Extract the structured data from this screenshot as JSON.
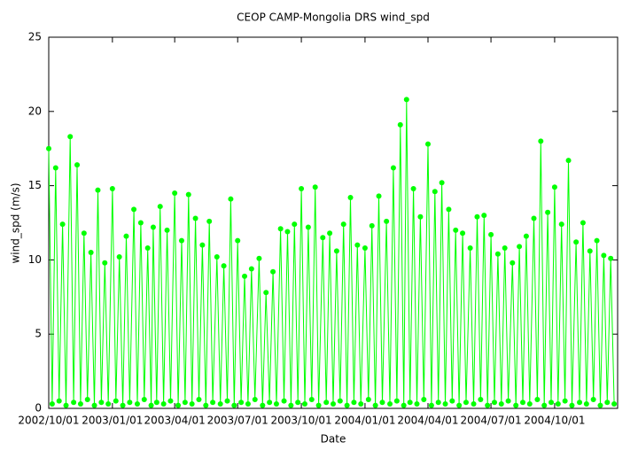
{
  "chart_data": {
    "type": "line",
    "title": "CEOP CAMP-Mongolia DRS  wind_spd",
    "xlabel": "Date",
    "ylabel": "wind_spd (m/s)",
    "x": [
      "2002/10/01",
      "2002/10/06",
      "2002/10/11",
      "2002/10/16",
      "2002/10/21",
      "2002/10/26",
      "2002/11/01",
      "2002/11/06",
      "2002/11/11",
      "2002/11/16",
      "2002/11/21",
      "2002/11/26",
      "2002/12/01",
      "2002/12/06",
      "2002/12/11",
      "2002/12/16",
      "2002/12/21",
      "2002/12/26",
      "2003/01/01",
      "2003/01/06",
      "2003/01/11",
      "2003/01/16",
      "2003/01/21",
      "2003/01/26",
      "2003/02/01",
      "2003/02/06",
      "2003/02/11",
      "2003/02/16",
      "2003/02/21",
      "2003/02/26",
      "2003/03/01",
      "2003/03/06",
      "2003/03/11",
      "2003/03/16",
      "2003/03/21",
      "2003/03/26",
      "2003/04/01",
      "2003/04/06",
      "2003/04/11",
      "2003/04/16",
      "2003/04/21",
      "2003/04/26",
      "2003/05/01",
      "2003/05/06",
      "2003/05/11",
      "2003/05/16",
      "2003/05/21",
      "2003/05/26",
      "2003/06/01",
      "2003/06/06",
      "2003/06/11",
      "2003/06/16",
      "2003/06/21",
      "2003/06/26",
      "2003/07/01",
      "2003/07/06",
      "2003/07/11",
      "2003/07/16",
      "2003/07/21",
      "2003/07/26",
      "2003/08/01",
      "2003/08/06",
      "2003/08/11",
      "2003/08/16",
      "2003/08/21",
      "2003/08/26",
      "2003/09/01",
      "2003/09/06",
      "2003/09/11",
      "2003/09/16",
      "2003/09/21",
      "2003/09/26",
      "2003/10/01",
      "2003/10/06",
      "2003/10/11",
      "2003/10/16",
      "2003/10/21",
      "2003/10/26",
      "2003/11/01",
      "2003/11/06",
      "2003/11/11",
      "2003/11/16",
      "2003/11/21",
      "2003/11/26",
      "2003/12/01",
      "2003/12/06",
      "2003/12/11",
      "2003/12/16",
      "2003/12/21",
      "2003/12/26",
      "2004/01/01",
      "2004/01/06",
      "2004/01/11",
      "2004/01/16",
      "2004/01/21",
      "2004/01/26",
      "2004/02/01",
      "2004/02/06",
      "2004/02/11",
      "2004/02/16",
      "2004/02/21",
      "2004/02/26",
      "2004/03/01",
      "2004/03/06",
      "2004/03/11",
      "2004/03/16",
      "2004/03/21",
      "2004/03/26",
      "2004/04/01",
      "2004/04/06",
      "2004/04/11",
      "2004/04/16",
      "2004/04/21",
      "2004/04/26",
      "2004/05/01",
      "2004/05/06",
      "2004/05/11",
      "2004/05/16",
      "2004/05/21",
      "2004/05/26",
      "2004/06/01",
      "2004/06/06",
      "2004/06/11",
      "2004/06/16",
      "2004/06/21",
      "2004/06/26",
      "2004/07/01",
      "2004/07/06",
      "2004/07/11",
      "2004/07/16",
      "2004/07/21",
      "2004/07/26",
      "2004/08/01",
      "2004/08/06",
      "2004/08/11",
      "2004/08/16",
      "2004/08/21",
      "2004/08/26",
      "2004/09/01",
      "2004/09/06",
      "2004/09/11",
      "2004/09/16",
      "2004/09/21",
      "2004/09/26",
      "2004/10/01",
      "2004/10/06",
      "2004/10/11",
      "2004/10/16",
      "2004/10/21",
      "2004/10/26",
      "2004/11/01",
      "2004/11/06",
      "2004/11/11",
      "2004/11/16",
      "2004/11/21",
      "2004/11/26",
      "2004/12/01",
      "2004/12/06",
      "2004/12/11",
      "2004/12/16",
      "2004/12/21",
      "2004/12/26"
    ],
    "series": [
      {
        "name": "wind_spd",
        "color": "#00ff00",
        "values": [
          17.5,
          0.3,
          16.2,
          0.5,
          12.4,
          0.2,
          18.3,
          0.4,
          16.4,
          0.3,
          11.8,
          0.6,
          10.5,
          0.2,
          14.7,
          0.4,
          9.8,
          0.3,
          14.8,
          0.5,
          10.2,
          0.2,
          11.6,
          0.4,
          13.4,
          0.3,
          12.5,
          0.6,
          10.8,
          0.2,
          12.2,
          0.4,
          13.6,
          0.3,
          12.0,
          0.5,
          14.5,
          0.2,
          11.3,
          0.4,
          14.4,
          0.3,
          12.8,
          0.6,
          11.0,
          0.2,
          12.6,
          0.4,
          10.2,
          0.3,
          9.6,
          0.5,
          14.1,
          0.2,
          11.3,
          0.4,
          8.9,
          0.3,
          9.4,
          0.6,
          10.1,
          0.2,
          7.8,
          0.4,
          9.2,
          0.3,
          12.1,
          0.5,
          11.9,
          0.2,
          12.4,
          0.4,
          14.8,
          0.3,
          12.2,
          0.6,
          14.9,
          0.2,
          11.5,
          0.4,
          11.8,
          0.3,
          10.6,
          0.5,
          12.4,
          0.2,
          14.2,
          0.4,
          11.0,
          0.3,
          10.8,
          0.6,
          12.3,
          0.2,
          14.3,
          0.4,
          12.6,
          0.3,
          16.2,
          0.5,
          19.1,
          0.2,
          20.8,
          0.4,
          14.8,
          0.3,
          12.9,
          0.6,
          17.8,
          0.2,
          14.6,
          0.4,
          15.2,
          0.3,
          13.4,
          0.5,
          12.0,
          0.2,
          11.8,
          0.4,
          10.8,
          0.3,
          12.9,
          0.6,
          13.0,
          0.2,
          11.7,
          0.4,
          10.4,
          0.3,
          10.8,
          0.5,
          9.8,
          0.2,
          10.9,
          0.4,
          11.6,
          0.3,
          12.8,
          0.6,
          18.0,
          0.2,
          13.2,
          0.4,
          14.9,
          0.3,
          12.4,
          0.5,
          16.7,
          0.2,
          11.2,
          0.4,
          12.5,
          0.3,
          10.6,
          0.6,
          11.3,
          0.2,
          10.3,
          0.4,
          10.1,
          0.3
        ]
      }
    ],
    "xlim": [
      "2002/10/01",
      "2004/12/31"
    ],
    "xticks": [
      "2002/10/01",
      "2003/01/01",
      "2003/04/01",
      "2003/07/01",
      "2003/10/01",
      "2004/01/01",
      "2004/04/01",
      "2004/07/01",
      "2004/10/01"
    ],
    "ylim": [
      0,
      25
    ],
    "yticks": [
      0,
      5,
      10,
      15,
      20,
      25
    ]
  }
}
